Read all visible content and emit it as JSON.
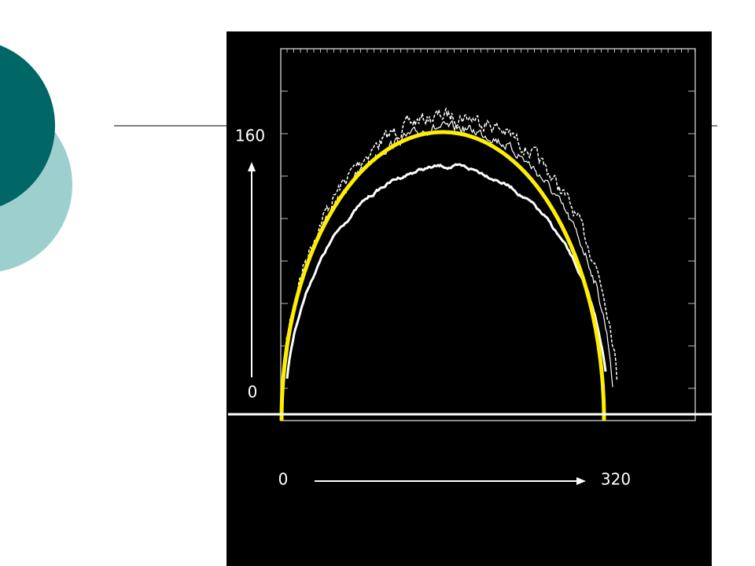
{
  "axis_labels": {
    "y": [
      "160",
      "0"
    ],
    "x": [
      "0",
      "320"
    ]
  }
}
